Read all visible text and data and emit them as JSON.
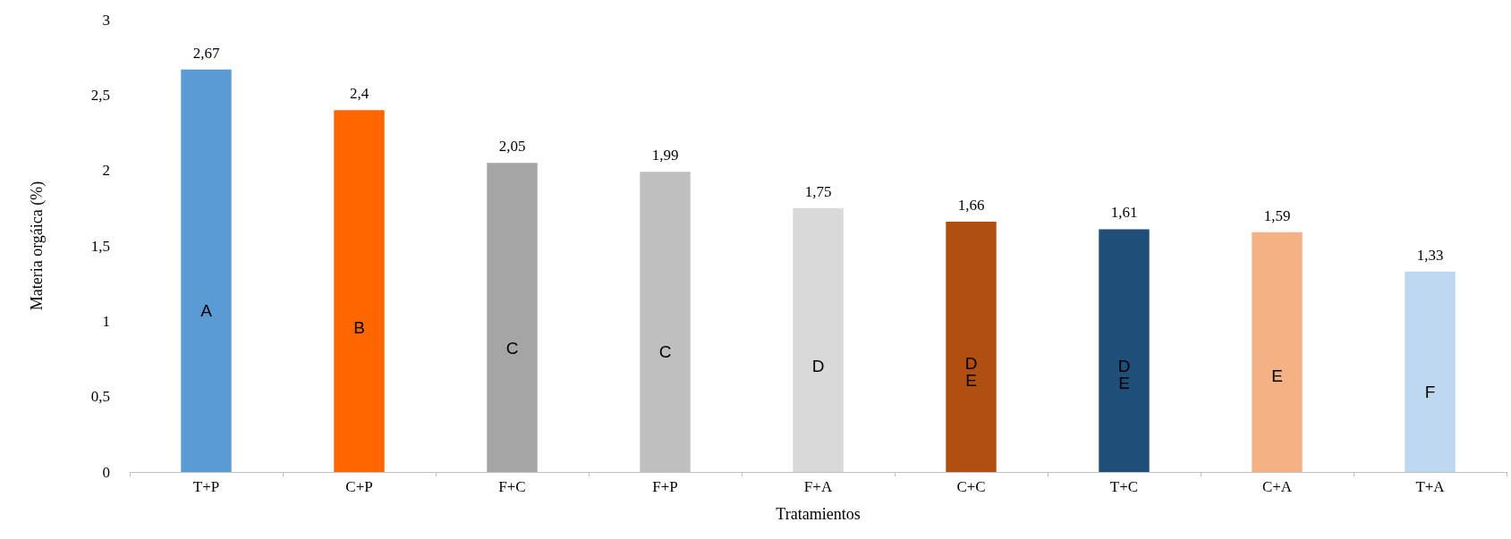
{
  "chart_data": {
    "type": "bar",
    "xlabel": "Tratamientos",
    "ylabel": "Materia orgáica (%)",
    "categories": [
      "T+P",
      "C+P",
      "F+C",
      "F+P",
      "F+A",
      "C+C",
      "T+C",
      "C+A",
      "T+A"
    ],
    "values": [
      2.67,
      2.4,
      2.05,
      1.99,
      1.75,
      1.66,
      1.61,
      1.59,
      1.33
    ],
    "colors": [
      "#5b9bd5",
      "#ff6600",
      "#a5a5a5",
      "#bfbfbf",
      "#d9d9d9",
      "#b04f12",
      "#1f4e79",
      "#f4b183",
      "#bdd7ee"
    ],
    "value_labels": [
      "2,67",
      "2,4",
      "2,05",
      "1,99",
      "1,75",
      "1,66",
      "1,61",
      "1,59",
      "1,33"
    ],
    "ylim": [
      0,
      3
    ],
    "yticks": [
      0,
      {
        "value": 0.5,
        "label": "0,5"
      },
      1,
      {
        "value": 1.5,
        "label": "1,5"
      },
      2,
      {
        "value": 2.5,
        "label": "2,5"
      },
      3
    ],
    "grid": false,
    "annotations": [
      "A",
      "B",
      "C",
      "C",
      "D",
      "D\nE",
      "D\nE",
      "E",
      "F"
    ]
  }
}
